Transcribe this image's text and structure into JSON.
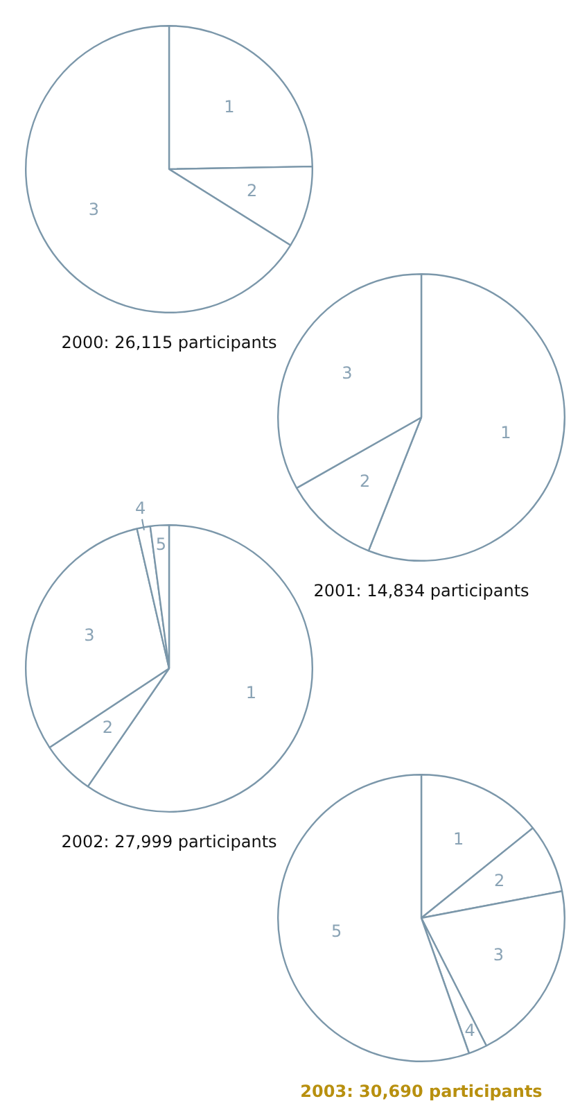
{
  "chart_data": [
    {
      "type": "pie",
      "title": "2000: 26,115 participants",
      "categories": [
        "1",
        "2",
        "3"
      ],
      "values": [
        24.7,
        9.2,
        66.1
      ],
      "colors": [
        "#ffffff",
        "#ffffff",
        "#ffffff"
      ],
      "legend": false
    },
    {
      "type": "pie",
      "title": "2001: 14,834 participants",
      "categories": [
        "1",
        "2",
        "3"
      ],
      "values": [
        56,
        10.8,
        33.2
      ],
      "colors": [
        "#ffffff",
        "#ffffff",
        "#ffffff"
      ],
      "legend": false
    },
    {
      "type": "pie",
      "title": "2002: 27,999 participants",
      "categories": [
        "1",
        "2",
        "3",
        "4",
        "5"
      ],
      "values": [
        59.6,
        6.1,
        30.7,
        1.5,
        2.1
      ],
      "colors": [
        "#ffffff",
        "#ffffff",
        "#ffffff",
        "#ffffff",
        "#ffffff"
      ],
      "legend": false
    },
    {
      "type": "pie",
      "title": "2003: 30,690 participants",
      "categories": [
        "1",
        "2",
        "3",
        "4",
        "5"
      ],
      "values": [
        14.2,
        7.8,
        20.5,
        2.1,
        55.4
      ],
      "colors": [
        "#ffffff",
        "#ffffff",
        "#ffffff",
        "#ffffff",
        "#ffffff"
      ],
      "legend": false
    }
  ]
}
